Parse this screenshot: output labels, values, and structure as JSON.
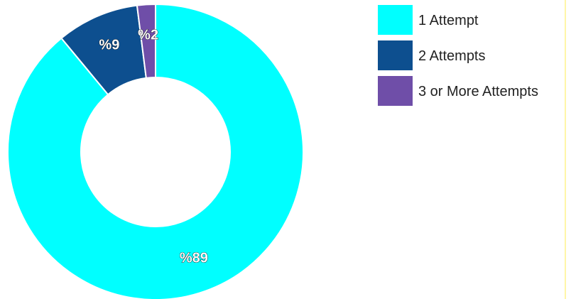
{
  "chart_data": {
    "type": "pie",
    "donut": true,
    "title": "",
    "categories": [
      "1 Attempt",
      "2 Attempts",
      "3 or More Attempts"
    ],
    "values": [
      89,
      9,
      2
    ],
    "labels": [
      "%89",
      "%9",
      "%2"
    ],
    "colors": [
      "#00ffff",
      "#0d4f8f",
      "#6f4ea8"
    ],
    "legend_position": "top-right"
  }
}
